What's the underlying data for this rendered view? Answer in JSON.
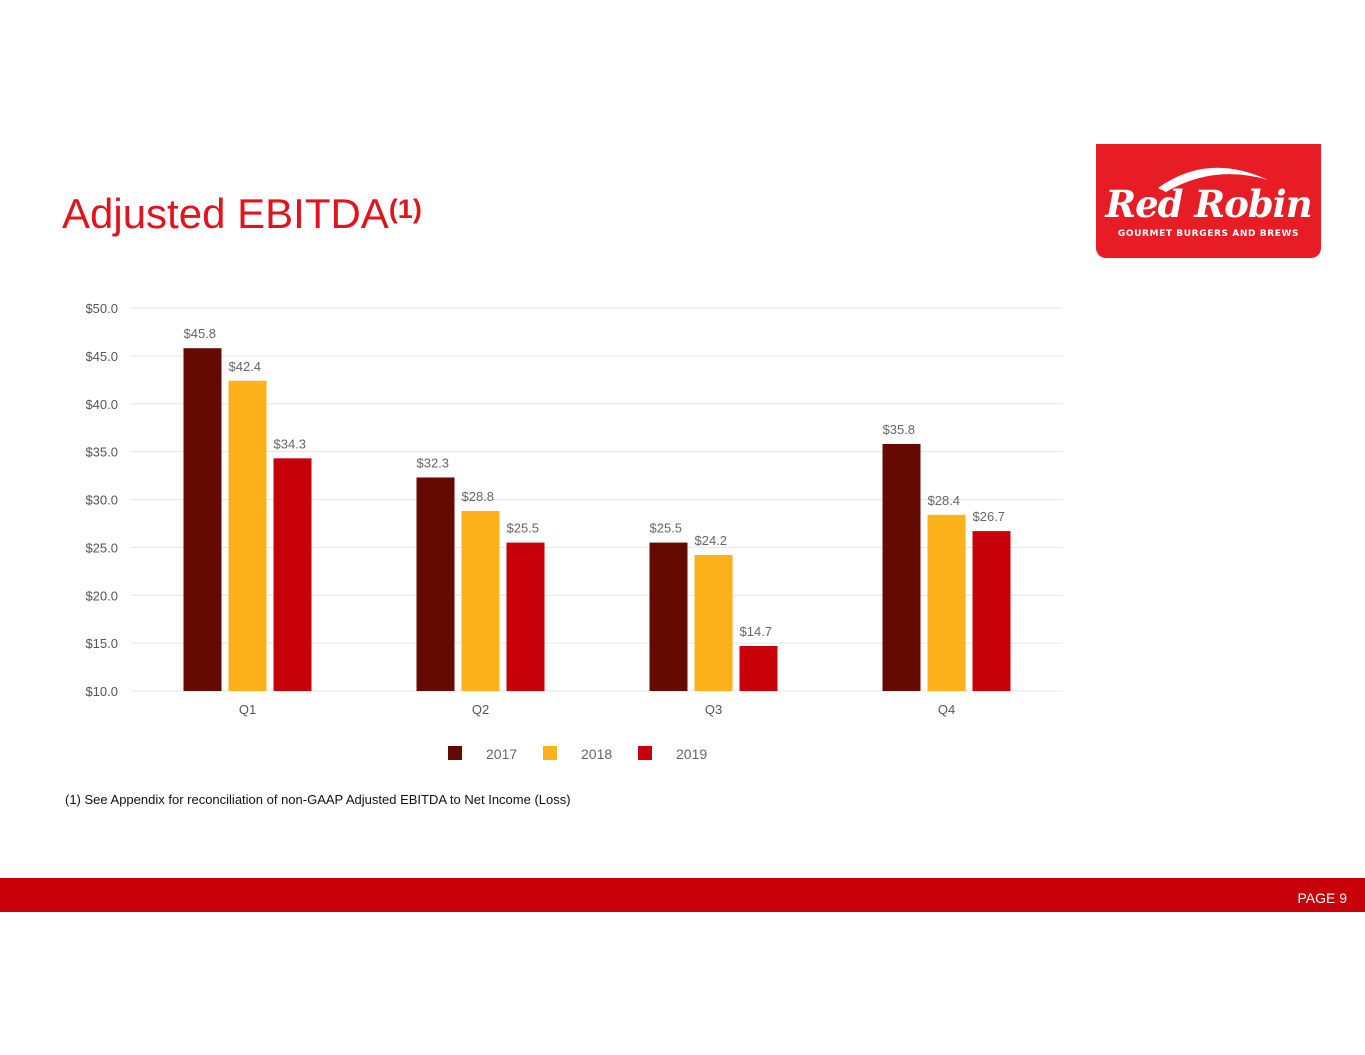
{
  "slide": {
    "title": "Adjusted EBITDA",
    "title_superscript": "(1)",
    "footnote": "(1) See Appendix for reconciliation of non-GAAP Adjusted EBITDA to Net Income (Loss)",
    "page_label": "PAGE 9"
  },
  "logo": {
    "wordmark": "Red Robin",
    "tagline": "GOURMET BURGERS AND BREWS",
    "color": "#e81c24"
  },
  "chart_data": {
    "type": "bar",
    "title": "",
    "xlabel": "",
    "ylabel": "",
    "categories": [
      "Q1",
      "Q2",
      "Q3",
      "Q4"
    ],
    "series": [
      {
        "name": "2017",
        "color": "#650a00",
        "values": [
          45.8,
          32.3,
          25.5,
          35.8
        ]
      },
      {
        "name": "2018",
        "color": "#fdb21c",
        "values": [
          42.4,
          28.8,
          24.2,
          28.4
        ]
      },
      {
        "name": "2019",
        "color": "#c8000a",
        "values": [
          34.3,
          25.5,
          14.7,
          26.7
        ]
      }
    ],
    "data_labels": [
      [
        "$45.8",
        "$32.3",
        "$25.5",
        "$35.8"
      ],
      [
        "$42.4",
        "$28.8",
        "$24.2",
        "$28.4"
      ],
      [
        "$34.3",
        "$25.5",
        "$14.7",
        "$26.7"
      ]
    ],
    "yticks": [
      "$10.0",
      "$15.0",
      "$20.0",
      "$25.0",
      "$30.0",
      "$35.0",
      "$40.0",
      "$45.0",
      "$50.0"
    ],
    "ylim": [
      10,
      50
    ],
    "ytick_step": 5,
    "grid": true,
    "legend_position": "bottom"
  }
}
